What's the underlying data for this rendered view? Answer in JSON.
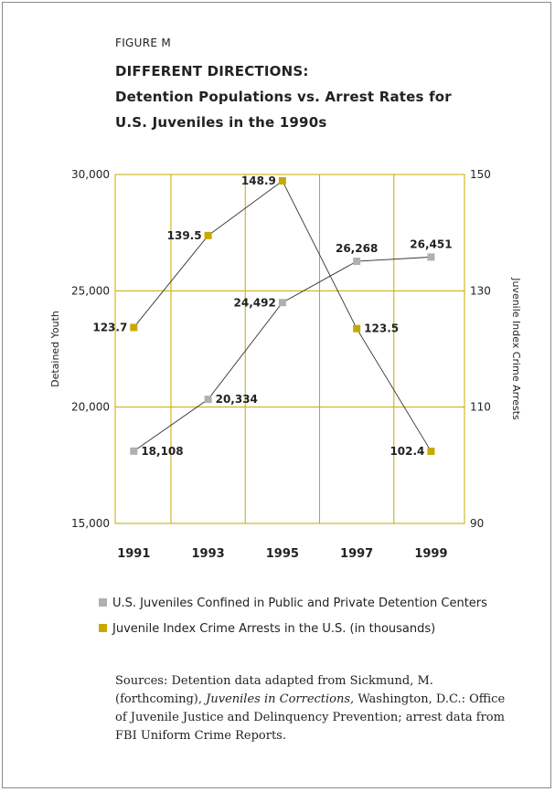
{
  "figure_label": "FIGURE M",
  "title_lines": [
    "DIFFERENT DIRECTIONS:",
    "Detention Populations vs. Arrest Rates for",
    "U.S. Juveniles in the 1990s"
  ],
  "legend": [
    {
      "label": "U.S. Juveniles Confined in Public and Private Detention Centers",
      "color": "#b0b0b0"
    },
    {
      "label": "Juvenile Index Crime Arrests in the U.S. (in thousands)",
      "color": "#c8a800"
    }
  ],
  "sources": {
    "part1": "Sources: Detention data adapted from Sickmund, M. (forthcoming), ",
    "italic": "Juveniles in Corrections,",
    "part2": " Washington, D.C.: Office of Juvenile Justice and Delinquency Prevention; arrest data from FBI Uniform Crime Reports."
  },
  "chart_data": {
    "type": "line",
    "grid": true,
    "x_ticks": [
      "1991",
      "1993",
      "1995",
      "1997",
      "1999"
    ],
    "x_range": [
      1990.5,
      1999.9
    ],
    "left_axis": {
      "label": "Detained Youth",
      "ylim": [
        15000,
        30000
      ],
      "ticks": [
        "15,000",
        "20,000",
        "25,000",
        "30,000"
      ],
      "tick_values": [
        15000,
        20000,
        25000,
        30000
      ]
    },
    "right_axis": {
      "label": "Juvenile Index Crime Arrests",
      "ylim": [
        90,
        150
      ],
      "ticks": [
        "90",
        "110",
        "130",
        "150"
      ],
      "tick_values": [
        90,
        110,
        130,
        150
      ]
    },
    "series": [
      {
        "name": "U.S. Juveniles Confined in Public and Private Detention Centers",
        "axis": "left",
        "color": "#b0b0b0",
        "x": [
          1991,
          1993,
          1995,
          1997,
          1999
        ],
        "values": [
          18108,
          20334,
          24492,
          26268,
          26451
        ],
        "labels": [
          "18,108",
          "20,334",
          "24,492",
          "26,268",
          "26,451"
        ]
      },
      {
        "name": "Juvenile Index Crime Arrests in the U.S. (in thousands)",
        "axis": "right",
        "color": "#c8a800",
        "x": [
          1991,
          1993,
          1995,
          1997,
          1999
        ],
        "values": [
          123.7,
          139.5,
          148.9,
          123.5,
          102.4
        ],
        "labels": [
          "123.7",
          "139.5",
          "148.9",
          "123.5",
          "102.4"
        ]
      }
    ]
  }
}
